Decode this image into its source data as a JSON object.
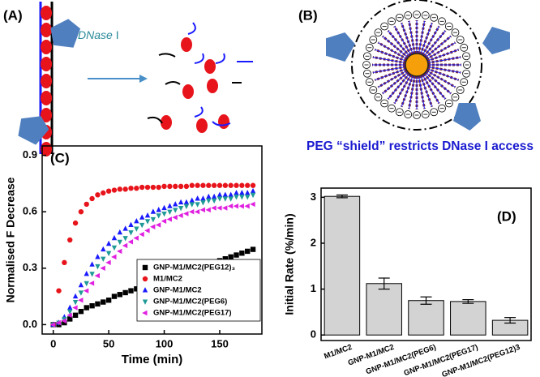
{
  "panel_a": {
    "label": "(A)",
    "enzyme": "DNase",
    "enzyme_suffix": "I"
  },
  "panel_b": {
    "label": "(B)",
    "caption": "PEG “shield” restricts DNase I access"
  },
  "chart_data": [
    {
      "type": "scatter",
      "title": "(C)",
      "x_label": "Time (min)",
      "y_label": "Normalised F Decrease",
      "xlim": [
        -10,
        188
      ],
      "ylim": [
        -0.05,
        0.95
      ],
      "xticks": [
        0,
        50,
        100,
        150
      ],
      "yticks": [
        {
          "value": 0,
          "label": "0.0"
        },
        0.3,
        0.6,
        0.9
      ],
      "legend": "lower right",
      "x": [
        0,
        5,
        10,
        15,
        20,
        25,
        30,
        35,
        40,
        45,
        50,
        55,
        60,
        65,
        70,
        75,
        80,
        85,
        90,
        95,
        100,
        105,
        110,
        115,
        120,
        125,
        130,
        135,
        140,
        145,
        150,
        155,
        160,
        165,
        170,
        175,
        180
      ],
      "series": [
        {
          "name": "GNP-M1/MC2(PEG12)₃",
          "color": "#000000",
          "marker": "square",
          "values": [
            0,
            0,
            0.01,
            0.03,
            0.05,
            0.07,
            0.09,
            0.1,
            0.11,
            0.12,
            0.13,
            0.15,
            0.16,
            0.17,
            0.18,
            0.19,
            0.2,
            0.21,
            0.22,
            0.23,
            0.24,
            0.25,
            0.26,
            0.27,
            0.28,
            0.29,
            0.3,
            0.31,
            0.32,
            0.33,
            0.34,
            0.35,
            0.36,
            0.37,
            0.38,
            0.39,
            0.4
          ]
        },
        {
          "name": "M1/MC2",
          "color": "#e8141b",
          "marker": "circle",
          "values": [
            0,
            0.18,
            0.33,
            0.45,
            0.54,
            0.6,
            0.64,
            0.67,
            0.69,
            0.7,
            0.71,
            0.715,
            0.72,
            0.72,
            0.725,
            0.725,
            0.73,
            0.73,
            0.73,
            0.73,
            0.735,
            0.735,
            0.735,
            0.735,
            0.735,
            0.74,
            0.74,
            0.74,
            0.74,
            0.74,
            0.74,
            0.74,
            0.74,
            0.74,
            0.74,
            0.74,
            0.74
          ]
        },
        {
          "name": "GNP-M1/MC2",
          "color": "#1a1aff",
          "marker": "triangle-up",
          "values": [
            0,
            0.01,
            0.04,
            0.09,
            0.15,
            0.21,
            0.27,
            0.32,
            0.36,
            0.4,
            0.43,
            0.46,
            0.49,
            0.51,
            0.53,
            0.55,
            0.57,
            0.58,
            0.6,
            0.61,
            0.62,
            0.63,
            0.64,
            0.65,
            0.65,
            0.66,
            0.67,
            0.67,
            0.68,
            0.68,
            0.69,
            0.69,
            0.69,
            0.7,
            0.7,
            0.7,
            0.71
          ]
        },
        {
          "name": "GNP-M1/MC2(PEG6)",
          "color": "#1f9a96",
          "marker": "triangle-down",
          "values": [
            0,
            0.01,
            0.03,
            0.07,
            0.12,
            0.17,
            0.22,
            0.27,
            0.31,
            0.35,
            0.38,
            0.41,
            0.44,
            0.46,
            0.49,
            0.51,
            0.53,
            0.55,
            0.56,
            0.58,
            0.59,
            0.6,
            0.61,
            0.62,
            0.63,
            0.64,
            0.64,
            0.65,
            0.66,
            0.66,
            0.67,
            0.67,
            0.67,
            0.68,
            0.68,
            0.68,
            0.69
          ]
        },
        {
          "name": "GNP-M1/MC2(PEG17)",
          "color": "#e020e0",
          "marker": "triangle-left",
          "values": [
            0,
            0.01,
            0.02,
            0.05,
            0.09,
            0.13,
            0.18,
            0.22,
            0.26,
            0.3,
            0.33,
            0.36,
            0.39,
            0.42,
            0.44,
            0.46,
            0.48,
            0.5,
            0.52,
            0.53,
            0.55,
            0.56,
            0.57,
            0.58,
            0.59,
            0.6,
            0.6,
            0.61,
            0.61,
            0.62,
            0.62,
            0.62,
            0.63,
            0.63,
            0.63,
            0.63,
            0.64
          ]
        }
      ]
    },
    {
      "type": "bar",
      "title": "(D)",
      "y_label": "Initial Rate (%/min)",
      "categories": [
        "M1/MC2",
        "GNP-M1/MC2",
        "GNP-M1/MC2(PEG6)",
        "GNP-M1/MC2(PEG17)",
        "GNP-M1/MC2(PEG12)3"
      ],
      "values": [
        3.02,
        1.12,
        0.75,
        0.73,
        0.32
      ],
      "errors": [
        0.03,
        0.12,
        0.08,
        0.04,
        0.06
      ],
      "color": "#d3d3d3",
      "ylim": [
        -0.12,
        3.2
      ],
      "yticks": [
        0,
        1,
        2,
        3
      ]
    }
  ]
}
